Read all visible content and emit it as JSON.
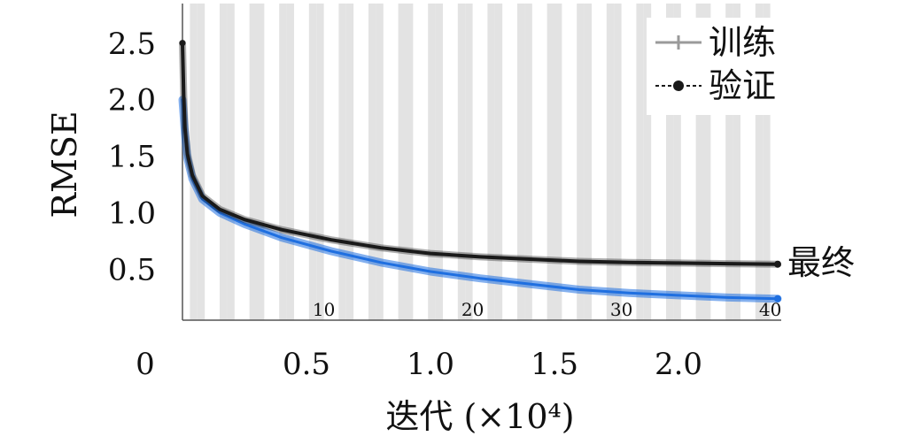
{
  "chart_data": {
    "type": "line",
    "title": "",
    "xlabel": "迭代 (×10⁴)",
    "ylabel": "RMSE",
    "xlim": [
      0,
      2.4
    ],
    "ylim": [
      0.05,
      2.85
    ],
    "x_ticks": [
      {
        "value": 0.5,
        "label": "0.5"
      },
      {
        "value": 1.0,
        "label": "1.0"
      },
      {
        "value": 1.5,
        "label": "1.5"
      },
      {
        "value": 2.0,
        "label": "2.0"
      }
    ],
    "x_origin_label": "0",
    "y_ticks": [
      {
        "value": 0.5,
        "label": "0.5"
      },
      {
        "value": 1.0,
        "label": "1.0"
      },
      {
        "value": 1.5,
        "label": "1.5"
      },
      {
        "value": 2.0,
        "label": "2.0"
      },
      {
        "value": 2.5,
        "label": "2.5"
      }
    ],
    "epoch_bands": {
      "count": 40,
      "end_x": 2.4
    },
    "epoch_labels": [
      {
        "epoch": 10,
        "label": "10"
      },
      {
        "epoch": 20,
        "label": "20"
      },
      {
        "epoch": 30,
        "label": "30"
      },
      {
        "epoch": 40,
        "label": "40"
      }
    ],
    "series": [
      {
        "name": "训练",
        "color": "#1f6fe0",
        "x": [
          0.0,
          0.005,
          0.01,
          0.02,
          0.04,
          0.08,
          0.15,
          0.25,
          0.4,
          0.6,
          0.8,
          1.0,
          1.2,
          1.4,
          1.6,
          1.8,
          2.0,
          2.2,
          2.4
        ],
        "y": [
          2.0,
          1.85,
          1.7,
          1.48,
          1.3,
          1.12,
          1.0,
          0.9,
          0.78,
          0.66,
          0.56,
          0.48,
          0.42,
          0.37,
          0.32,
          0.29,
          0.27,
          0.25,
          0.24
        ]
      },
      {
        "name": "验证",
        "color": "#1a1a1a",
        "x": [
          0.0,
          0.005,
          0.01,
          0.02,
          0.04,
          0.08,
          0.15,
          0.25,
          0.4,
          0.6,
          0.8,
          1.0,
          1.2,
          1.4,
          1.6,
          1.8,
          2.0,
          2.2,
          2.4
        ],
        "y": [
          2.5,
          2.04,
          1.75,
          1.52,
          1.33,
          1.15,
          1.03,
          0.94,
          0.85,
          0.76,
          0.69,
          0.64,
          0.61,
          0.59,
          0.57,
          0.56,
          0.555,
          0.55,
          0.545
        ]
      }
    ],
    "legend": {
      "position": "top-right",
      "entries": [
        "训练",
        "验证"
      ]
    },
    "end_label": "最终",
    "colors": {
      "band": "#e3e3e3",
      "train": "#1f6fe0",
      "val": "#1a1a1a",
      "legend_train": "#9a9a9a"
    }
  }
}
